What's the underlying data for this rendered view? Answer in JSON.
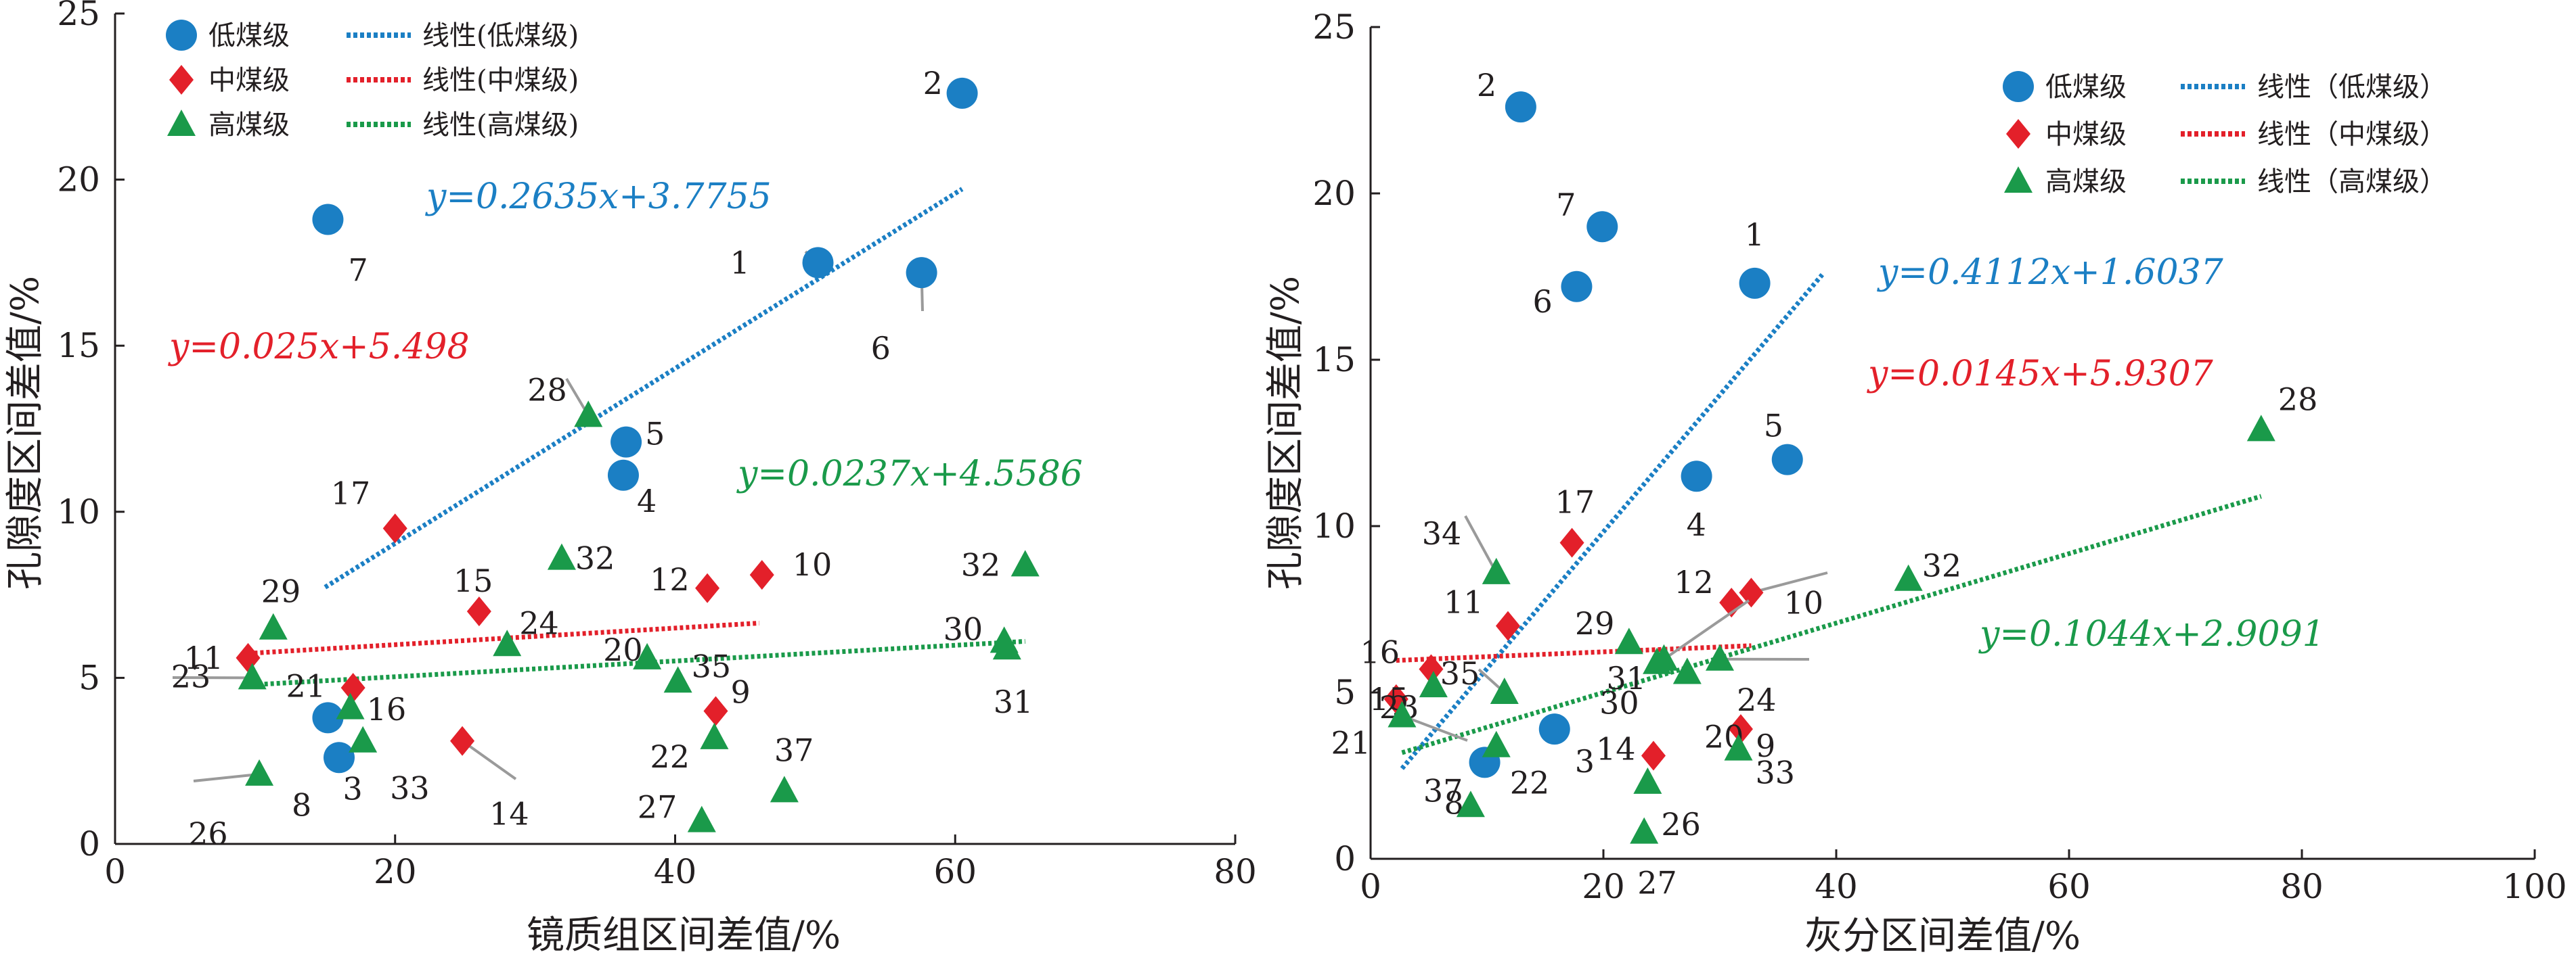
{
  "colors": {
    "low": "#1b7fc4",
    "mid": "#e3202a",
    "high": "#1a9a4a",
    "axis": "#231f20",
    "leader": "#9a9a9a"
  },
  "chart_data": [
    {
      "type": "scatter",
      "xlabel": "镜质组区间差值/%",
      "ylabel": "孔隙度区间差值/%",
      "xlim": [
        0,
        80
      ],
      "ylim": [
        0,
        25
      ],
      "xticks": [
        "0",
        "20",
        "40",
        "60",
        "80"
      ],
      "yticks": [
        "0",
        "5",
        "10",
        "15",
        "20",
        "25"
      ],
      "legend": {
        "placement": "top-left",
        "items": [
          {
            "label": "低煤级",
            "marker": "circle",
            "color": "#1b7fc4"
          },
          {
            "label": "中煤级",
            "marker": "diamond",
            "color": "#e3202a"
          },
          {
            "label": "高煤级",
            "marker": "triangle",
            "color": "#1a9a4a"
          },
          {
            "label": "线性(低煤级)",
            "marker": "dotted-line",
            "color": "#1b7fc4"
          },
          {
            "label": "线性(中煤级)",
            "marker": "dotted-line",
            "color": "#e3202a"
          },
          {
            "label": "线性(高煤级)",
            "marker": "dotted-line",
            "color": "#1a9a4a"
          }
        ]
      },
      "series": [
        {
          "name": "低煤级",
          "marker": "circle",
          "color": "#1b7fc4",
          "points": [
            {
              "label": "7",
              "x": 15.2,
              "y": 18.8
            },
            {
              "label": "2",
              "x": 60.5,
              "y": 22.6
            },
            {
              "label": "1",
              "x": 50.2,
              "y": 17.5
            },
            {
              "label": "6",
              "x": 57.6,
              "y": 17.2
            },
            {
              "label": "5",
              "x": 36.5,
              "y": 12.1
            },
            {
              "label": "4",
              "x": 36.3,
              "y": 11.1
            },
            {
              "label": "3",
              "x": 15.2,
              "y": 3.8
            },
            {
              "label": "8",
              "x": 16.0,
              "y": 2.6
            }
          ]
        },
        {
          "name": "中煤级",
          "marker": "diamond",
          "color": "#e3202a",
          "points": [
            {
              "label": "17",
              "x": 20.0,
              "y": 9.5
            },
            {
              "label": "15",
              "x": 26.0,
              "y": 7.0
            },
            {
              "label": "12",
              "x": 42.3,
              "y": 7.7
            },
            {
              "label": "10",
              "x": 46.2,
              "y": 8.1
            },
            {
              "label": "11",
              "x": 9.5,
              "y": 5.6
            },
            {
              "label": "16",
              "x": 17.0,
              "y": 4.7
            },
            {
              "label": "9",
              "x": 42.9,
              "y": 4.0
            },
            {
              "label": "14",
              "x": 24.8,
              "y": 3.1
            }
          ]
        },
        {
          "name": "高煤级",
          "marker": "triangle",
          "color": "#1a9a4a",
          "points": [
            {
              "label": "28",
              "x": 33.8,
              "y": 12.9
            },
            {
              "label": "32",
              "x": 31.9,
              "y": 8.6
            },
            {
              "label": "32",
              "x": 65.0,
              "y": 8.4
            },
            {
              "label": "29",
              "x": 11.3,
              "y": 6.5
            },
            {
              "label": "24",
              "x": 28.0,
              "y": 6.0
            },
            {
              "label": "20",
              "x": 38.0,
              "y": 5.6
            },
            {
              "label": "30",
              "x": 63.5,
              "y": 6.1
            },
            {
              "label": "31",
              "x": 63.7,
              "y": 5.9
            },
            {
              "label": "23",
              "x": 9.8,
              "y": 5.0
            },
            {
              "label": "35",
              "x": 40.2,
              "y": 4.9
            },
            {
              "label": "21",
              "x": 16.8,
              "y": 4.1
            },
            {
              "label": "22",
              "x": 42.8,
              "y": 3.2
            },
            {
              "label": "33",
              "x": 17.7,
              "y": 3.1
            },
            {
              "label": "26",
              "x": 10.3,
              "y": 2.1
            },
            {
              "label": "37",
              "x": 47.8,
              "y": 1.6
            },
            {
              "label": "27",
              "x": 41.9,
              "y": 0.7
            }
          ]
        }
      ],
      "trendlines": [
        {
          "series": "低煤级",
          "slope": 0.2635,
          "intercept": 3.7755,
          "x_range": [
            15,
            60.5
          ],
          "equation": "y=0.2635x+3.7755"
        },
        {
          "series": "中煤级",
          "slope": 0.025,
          "intercept": 5.498,
          "x_range": [
            9.5,
            46
          ],
          "equation": "y=0.025x+5.498"
        },
        {
          "series": "高煤级",
          "slope": 0.0237,
          "intercept": 4.5586,
          "x_range": [
            9.8,
            65
          ],
          "equation": "y=0.0237x+4.5586"
        }
      ]
    },
    {
      "type": "scatter",
      "xlabel": "灰分区间差值/%",
      "ylabel": "孔隙度区间差值/%",
      "xlim": [
        0,
        100
      ],
      "ylim": [
        0,
        25
      ],
      "xticks": [
        "0",
        "20",
        "40",
        "60",
        "80",
        "100"
      ],
      "yticks": [
        "0",
        "5",
        "10",
        "15",
        "20",
        "25"
      ],
      "legend": {
        "placement": "top-right",
        "items": [
          {
            "label": "低煤级",
            "marker": "circle",
            "color": "#1b7fc4"
          },
          {
            "label": "中煤级",
            "marker": "diamond",
            "color": "#e3202a"
          },
          {
            "label": "高煤级",
            "marker": "triangle",
            "color": "#1a9a4a"
          },
          {
            "label": "线性（低煤级）",
            "marker": "dotted-line",
            "color": "#1b7fc4"
          },
          {
            "label": "线性（中煤级）",
            "marker": "dotted-line",
            "color": "#e3202a"
          },
          {
            "label": "线性（高煤级）",
            "marker": "dotted-line",
            "color": "#1a9a4a"
          }
        ]
      },
      "series": [
        {
          "name": "低煤级",
          "marker": "circle",
          "color": "#1b7fc4",
          "points": [
            {
              "label": "2",
              "x": 12.9,
              "y": 22.6
            },
            {
              "label": "7",
              "x": 19.9,
              "y": 19.0
            },
            {
              "label": "1",
              "x": 33.0,
              "y": 17.3
            },
            {
              "label": "6",
              "x": 17.7,
              "y": 17.2
            },
            {
              "label": "5",
              "x": 35.8,
              "y": 12.0
            },
            {
              "label": "4",
              "x": 28.0,
              "y": 11.5
            },
            {
              "label": "3",
              "x": 15.8,
              "y": 3.9
            },
            {
              "label": "8",
              "x": 9.8,
              "y": 2.9
            }
          ]
        },
        {
          "name": "中煤级",
          "marker": "diamond",
          "color": "#e3202a",
          "points": [
            {
              "label": "17",
              "x": 17.3,
              "y": 9.5
            },
            {
              "label": "11",
              "x": 11.8,
              "y": 7.0
            },
            {
              "label": "12",
              "x": 31.0,
              "y": 7.7
            },
            {
              "label": "10",
              "x": 32.7,
              "y": 8.0
            },
            {
              "label": "16",
              "x": 5.2,
              "y": 5.7
            },
            {
              "label": "15",
              "x": 2.2,
              "y": 4.8
            },
            {
              "label": "9",
              "x": 31.8,
              "y": 3.9
            },
            {
              "label": "14",
              "x": 24.3,
              "y": 3.1
            }
          ]
        },
        {
          "name": "高煤级",
          "marker": "triangle",
          "color": "#1a9a4a",
          "points": [
            {
              "label": "28",
              "x": 76.5,
              "y": 12.9
            },
            {
              "label": "34",
              "x": 10.8,
              "y": 8.6
            },
            {
              "label": "32",
              "x": 46.2,
              "y": 8.4
            },
            {
              "label": "29",
              "x": 22.2,
              "y": 6.5
            },
            {
              "label": "31",
              "x": 25.2,
              "y": 6.0
            },
            {
              "label": "30",
              "x": 24.6,
              "y": 5.9
            },
            {
              "label": "24",
              "x": 30.0,
              "y": 6.0
            },
            {
              "label": "20",
              "x": 27.2,
              "y": 5.6
            },
            {
              "label": "35",
              "x": 11.5,
              "y": 5.0
            },
            {
              "label": "23",
              "x": 5.4,
              "y": 5.2
            },
            {
              "label": "21",
              "x": 2.7,
              "y": 4.3
            },
            {
              "label": "22",
              "x": 10.8,
              "y": 3.4
            },
            {
              "label": "33",
              "x": 31.6,
              "y": 3.3
            },
            {
              "label": "26",
              "x": 23.8,
              "y": 2.3
            },
            {
              "label": "37",
              "x": 8.6,
              "y": 1.6
            },
            {
              "label": "27",
              "x": 23.5,
              "y": 0.8
            }
          ]
        }
      ],
      "trendlines": [
        {
          "series": "低煤级",
          "slope": 0.4112,
          "intercept": 1.6037,
          "x_range": [
            2.7,
            38.8
          ],
          "equation": "y=0.4112x+1.6037"
        },
        {
          "series": "中煤级",
          "slope": 0.0145,
          "intercept": 5.9307,
          "x_range": [
            2.2,
            32.7
          ],
          "equation": "y=0.0145x+5.9307"
        },
        {
          "series": "高煤级",
          "slope": 0.1044,
          "intercept": 2.9091,
          "x_range": [
            2.7,
            76.5
          ],
          "equation": "y=0.1044x+2.9091"
        }
      ]
    }
  ]
}
